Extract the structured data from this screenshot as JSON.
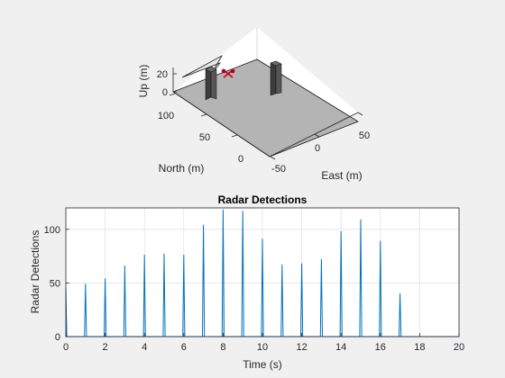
{
  "chart_data": [
    {
      "type": "3d-scene",
      "xlabel": "East (m)",
      "ylabel": "North (m)",
      "zlabel": "Up (m)",
      "x_ticks": [
        "-50",
        "0",
        "50"
      ],
      "y_ticks": [
        "0",
        "50",
        "100"
      ],
      "z_ticks": [
        "0",
        "20"
      ],
      "objects": [
        "ground-plane",
        "building",
        "building",
        "drone",
        "radar-coverage-wedge"
      ]
    },
    {
      "type": "line",
      "title": "Radar Detections",
      "xlabel": "Time (s)",
      "ylabel": "Radar Detections",
      "xlim": [
        0,
        20
      ],
      "ylim": [
        0,
        120
      ],
      "x_ticks": [
        "0",
        "2",
        "4",
        "6",
        "8",
        "10",
        "12",
        "14",
        "16",
        "18",
        "20"
      ],
      "y_ticks": [
        "0",
        "50",
        "100"
      ],
      "grid": true,
      "series": [
        {
          "color": "#0072bd",
          "x": [
            0,
            0.05,
            0.95,
            1,
            1.05,
            1.95,
            2,
            2.05,
            2.95,
            3,
            3.05,
            3.95,
            4,
            4.05,
            4.95,
            5,
            5.05,
            5.95,
            6,
            6.05,
            6.95,
            7,
            7.05,
            7.95,
            8,
            8.05,
            8.95,
            9,
            9.05,
            9.95,
            10,
            10.05,
            10.95,
            11,
            11.05,
            11.95,
            12,
            12.05,
            12.95,
            13,
            13.05,
            13.95,
            14,
            14.05,
            14.95,
            15,
            15.05,
            15.95,
            16,
            16.05,
            16.95,
            17,
            17.05,
            20
          ],
          "y": [
            45,
            0,
            0,
            49,
            0,
            0,
            54,
            0,
            0,
            66,
            0,
            0,
            76,
            0,
            0,
            77,
            0,
            0,
            76,
            0,
            0,
            104,
            0,
            0,
            118,
            0,
            0,
            117,
            0,
            0,
            91,
            0,
            0,
            67,
            0,
            0,
            68,
            0,
            0,
            72,
            0,
            0,
            98,
            0,
            0,
            109,
            0,
            0,
            89,
            0,
            0,
            40,
            0,
            0
          ]
        }
      ]
    }
  ]
}
